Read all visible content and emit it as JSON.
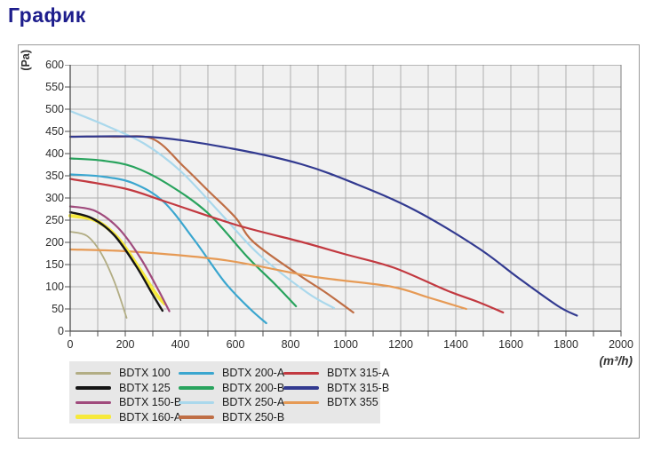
{
  "page": {
    "title": "График",
    "title_color": "#1d1d8c"
  },
  "chart_data": {
    "type": "line",
    "title": "График",
    "xlabel": "(m³/h)",
    "ylabel": "(Pa)",
    "xlim": [
      0,
      2000
    ],
    "ylim": [
      0,
      600
    ],
    "x_tick_labels": [
      "0",
      "200",
      "400",
      "600",
      "800",
      "1000",
      "1200",
      "1400",
      "1600",
      "1800",
      "2000"
    ],
    "x_minor_tick_step": 100,
    "y_tick_labels": [
      "0",
      "50",
      "100",
      "150",
      "200",
      "250",
      "300",
      "350",
      "400",
      "450",
      "500",
      "550",
      "600"
    ],
    "grid": "on",
    "plot_bg": "#f1f1f1",
    "grid_color": "#aeaeae",
    "border_color": "#7d7d7d",
    "axis_color": "#4c4c4c",
    "legend_position": "bottom-left",
    "series": [
      {
        "name": "BDTX 100",
        "color": "#b2ad84",
        "width": 1.8,
        "z": 0,
        "points": [
          [
            0,
            224
          ],
          [
            60,
            215
          ],
          [
            110,
            178
          ],
          [
            160,
            112
          ],
          [
            205,
            30
          ]
        ]
      },
      {
        "name": "BDTX 125",
        "color": "#151515",
        "width": 2.4,
        "z": 2,
        "points": [
          [
            0,
            268
          ],
          [
            80,
            254
          ],
          [
            160,
            216
          ],
          [
            240,
            146
          ],
          [
            300,
            82
          ],
          [
            335,
            46
          ]
        ]
      },
      {
        "name": "BDTX 150-B",
        "color": "#a04b7d",
        "width": 2.2,
        "z": 3,
        "points": [
          [
            0,
            281
          ],
          [
            90,
            271
          ],
          [
            175,
            232
          ],
          [
            255,
            165
          ],
          [
            320,
            93
          ],
          [
            360,
            45
          ]
        ]
      },
      {
        "name": "BDTX 160-A",
        "color": "#f6e93c",
        "width": 4,
        "z": 1,
        "points": [
          [
            0,
            260
          ],
          [
            90,
            250
          ],
          [
            170,
            212
          ],
          [
            250,
            142
          ],
          [
            310,
            85
          ],
          [
            343,
            62
          ]
        ]
      },
      {
        "name": "BDTX 200-A",
        "color": "#3aa6cf",
        "width": 2.2,
        "z": 0,
        "points": [
          [
            0,
            353
          ],
          [
            120,
            348
          ],
          [
            230,
            333
          ],
          [
            340,
            291
          ],
          [
            450,
            206
          ],
          [
            560,
            111
          ],
          [
            650,
            52
          ],
          [
            712,
            18
          ]
        ]
      },
      {
        "name": "BDTX 200-B",
        "color": "#28a35d",
        "width": 2.2,
        "z": 0,
        "points": [
          [
            0,
            389
          ],
          [
            120,
            384
          ],
          [
            230,
            370
          ],
          [
            350,
            333
          ],
          [
            500,
            266
          ],
          [
            645,
            166
          ],
          [
            745,
            105
          ],
          [
            820,
            56
          ]
        ]
      },
      {
        "name": "BDTX 250-A",
        "color": "#aad8ec",
        "width": 2.2,
        "z": 0,
        "points": [
          [
            0,
            496
          ],
          [
            130,
            463
          ],
          [
            270,
            422
          ],
          [
            400,
            361
          ],
          [
            545,
            266
          ],
          [
            685,
            173
          ],
          [
            860,
            87
          ],
          [
            958,
            52
          ]
        ]
      },
      {
        "name": "BDTX 250-B",
        "color": "#bf6e45",
        "width": 2.2,
        "z": 0,
        "points": [
          [
            0,
            438
          ],
          [
            160,
            438
          ],
          [
            300,
            433
          ],
          [
            410,
            372
          ],
          [
            500,
            317
          ],
          [
            600,
            256
          ],
          [
            665,
            201
          ],
          [
            820,
            131
          ],
          [
            930,
            86
          ],
          [
            1028,
            42
          ]
        ]
      },
      {
        "name": "BDTX 315-A",
        "color": "#c23940",
        "width": 2.2,
        "z": 0,
        "points": [
          [
            0,
            343
          ],
          [
            200,
            321
          ],
          [
            350,
            291
          ],
          [
            610,
            238
          ],
          [
            840,
            201
          ],
          [
            1000,
            173
          ],
          [
            1175,
            143
          ],
          [
            1370,
            91
          ],
          [
            1480,
            66
          ],
          [
            1572,
            42
          ]
        ]
      },
      {
        "name": "BDTX 315-B",
        "color": "#323a90",
        "width": 2.2,
        "z": 0,
        "points": [
          [
            0,
            438
          ],
          [
            300,
            437
          ],
          [
            590,
            411
          ],
          [
            840,
            376
          ],
          [
            1040,
            331
          ],
          [
            1250,
            273
          ],
          [
            1480,
            188
          ],
          [
            1625,
            121
          ],
          [
            1770,
            57
          ],
          [
            1840,
            35
          ]
        ]
      },
      {
        "name": "BDTX 355",
        "color": "#e69a55",
        "width": 2.2,
        "z": 0,
        "points": [
          [
            0,
            184
          ],
          [
            230,
            179
          ],
          [
            560,
            160
          ],
          [
            880,
            123
          ],
          [
            1160,
            101
          ],
          [
            1300,
            76
          ],
          [
            1438,
            50
          ]
        ]
      }
    ]
  }
}
